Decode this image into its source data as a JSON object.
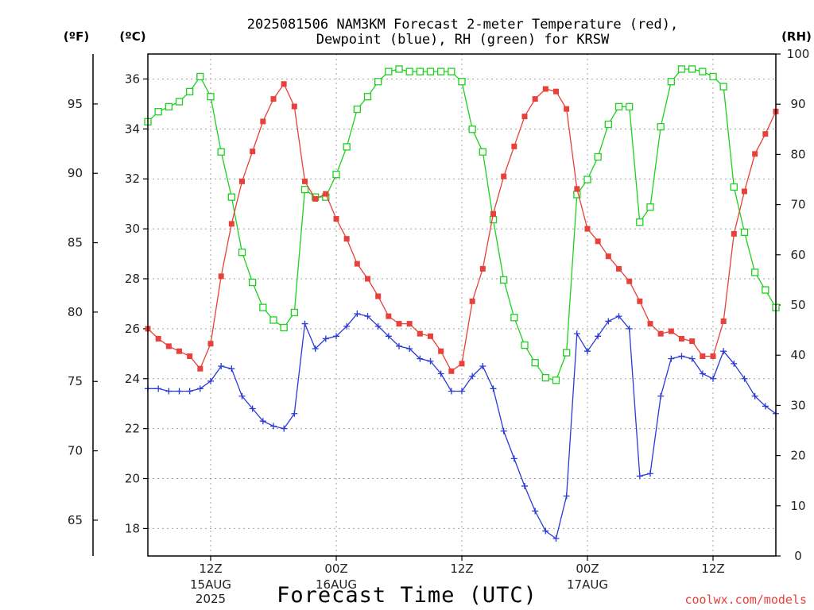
{
  "title": {
    "line1": "2025081506 NAM3KM Forecast 2-meter Temperature (red),",
    "line2": "Dewpoint (blue), RH (green) for KRSW"
  },
  "units": {
    "f": "(ºF)",
    "c": "(ºC)",
    "rh": "(RH)"
  },
  "xlabel": "Forecast Time (UTC)",
  "credit": "coolwx.com/models",
  "chart_data": {
    "type": "line",
    "title": "2025081506 NAM3KM Forecast 2-meter Temperature (red), Dewpoint (blue), RH (green) for KRSW",
    "xlabel": "Forecast Time (UTC)",
    "x_hours_from_06z_15aug": [
      0,
      1,
      2,
      3,
      4,
      5,
      6,
      7,
      8,
      9,
      10,
      11,
      12,
      13,
      14,
      15,
      16,
      17,
      18,
      19,
      20,
      21,
      22,
      23,
      24,
      25,
      26,
      27,
      28,
      29,
      30,
      31,
      32,
      33,
      34,
      35,
      36,
      37,
      38,
      39,
      40,
      41,
      42,
      43,
      44,
      45,
      46,
      47,
      48,
      49,
      50,
      51,
      52,
      53,
      54,
      55,
      56,
      57,
      58,
      59,
      60
    ],
    "x_ticks": [
      {
        "hour": 6,
        "label": "12Z",
        "sub": [
          "15AUG",
          "2025"
        ]
      },
      {
        "hour": 18,
        "label": "00Z",
        "sub": [
          "16AUG"
        ]
      },
      {
        "hour": 30,
        "label": "12Z",
        "sub": []
      },
      {
        "hour": 42,
        "label": "00Z",
        "sub": [
          "17AUG"
        ]
      },
      {
        "hour": 54,
        "label": "12Z",
        "sub": []
      }
    ],
    "y_left_celsius": {
      "ylim": [
        16.9,
        37
      ],
      "ticks": [
        18,
        20,
        22,
        24,
        26,
        28,
        30,
        32,
        34,
        36
      ]
    },
    "y_left_fahrenheit": {
      "ticks": [
        65,
        70,
        75,
        80,
        85,
        90,
        95
      ]
    },
    "y_right_rh": {
      "ylim": [
        0,
        100
      ],
      "ticks": [
        0,
        10,
        20,
        30,
        40,
        50,
        60,
        70,
        80,
        90,
        100
      ]
    },
    "grid": true,
    "series": [
      {
        "name": "Temperature",
        "axis": "celsius",
        "color": "#e8403a",
        "marker": "filled-square",
        "values": [
          26.0,
          25.6,
          25.3,
          25.1,
          24.9,
          24.4,
          25.4,
          28.1,
          30.2,
          31.9,
          33.1,
          34.3,
          35.2,
          35.8,
          34.9,
          31.9,
          31.2,
          31.4,
          30.4,
          29.6,
          28.6,
          28.0,
          27.3,
          26.5,
          26.2,
          26.2,
          25.8,
          25.7,
          25.1,
          24.3,
          24.6,
          27.1,
          28.4,
          30.6,
          32.1,
          33.3,
          34.5,
          35.2,
          35.6,
          35.5,
          34.8,
          31.6,
          30.0,
          29.5,
          28.9,
          28.4,
          27.9,
          27.1,
          26.2,
          25.8,
          25.9,
          25.6,
          25.5,
          24.9,
          24.9,
          26.3,
          29.8,
          31.5,
          33.0,
          33.8,
          34.7
        ]
      },
      {
        "name": "Dewpoint",
        "axis": "celsius",
        "color": "#2a3ad6",
        "marker": "plus",
        "values": [
          23.6,
          23.6,
          23.5,
          23.5,
          23.5,
          23.6,
          23.9,
          24.5,
          24.4,
          23.3,
          22.8,
          22.3,
          22.1,
          22.0,
          22.6,
          26.2,
          25.2,
          25.6,
          25.7,
          26.1,
          26.6,
          26.5,
          26.1,
          25.7,
          25.3,
          25.2,
          24.8,
          24.7,
          24.2,
          23.5,
          23.5,
          24.1,
          24.5,
          23.6,
          21.9,
          20.8,
          19.7,
          18.7,
          17.9,
          17.6,
          19.3,
          25.8,
          25.1,
          25.7,
          26.3,
          26.5,
          26.0,
          20.1,
          20.2,
          23.3,
          24.8,
          24.9,
          24.8,
          24.2,
          24.0,
          25.1,
          24.6,
          24.0,
          23.3,
          22.9,
          22.6
        ]
      },
      {
        "name": "RH",
        "axis": "rh",
        "color": "#1fd01f",
        "marker": "open-square",
        "values": [
          86.5,
          88.5,
          89.5,
          90.5,
          92.5,
          95.5,
          91.5,
          80.5,
          71.5,
          60.5,
          54.5,
          49.5,
          47.0,
          45.5,
          48.5,
          73.0,
          71.5,
          71.5,
          76.0,
          81.5,
          89.0,
          91.5,
          94.5,
          96.5,
          97.0,
          96.5,
          96.5,
          96.5,
          96.5,
          96.5,
          94.5,
          85.0,
          80.5,
          67.0,
          55.0,
          47.5,
          42.0,
          38.5,
          35.5,
          35.0,
          40.5,
          72.0,
          75.0,
          79.5,
          86.0,
          89.5,
          89.5,
          66.5,
          69.5,
          85.5,
          94.5,
          97.0,
          97.0,
          96.5,
          95.5,
          93.5,
          73.5,
          64.5,
          56.5,
          53.0,
          49.5
        ]
      }
    ]
  }
}
